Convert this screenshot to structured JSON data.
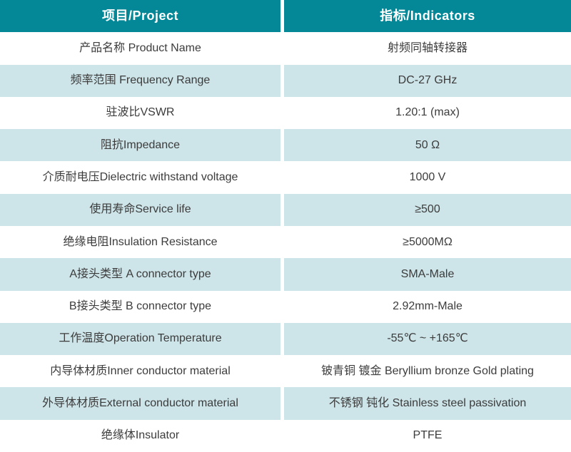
{
  "table": {
    "header": {
      "project": "项目/Project",
      "indicators": "指标/Indicators"
    },
    "rows": [
      {
        "project": "产品名称 Product Name",
        "indicator": "射频同轴转接器"
      },
      {
        "project": "频率范围 Frequency Range",
        "indicator": "DC-27 GHz"
      },
      {
        "project": "驻波比VSWR",
        "indicator": "1.20:1 (max)"
      },
      {
        "project": "阻抗Impedance",
        "indicator": "50 Ω"
      },
      {
        "project": "介质耐电压Dielectric withstand voltage",
        "indicator": "1000 V"
      },
      {
        "project": "使用寿命Service life",
        "indicator": "≥500"
      },
      {
        "project": "绝缘电阻Insulation Resistance",
        "indicator": "≥5000MΩ"
      },
      {
        "project": "A接头类型 A connector type",
        "indicator": "SMA-Male"
      },
      {
        "project": "B接头类型 B connector type",
        "indicator": "2.92mm-Male"
      },
      {
        "project": "工作温度Operation Temperature",
        "indicator": "-55℃ ~ +165℃"
      },
      {
        "project": "内导体材质Inner conductor material",
        "indicator": "铍青铜 镀金 Beryllium bronze Gold plating"
      },
      {
        "project": "外导体材质External conductor material",
        "indicator": "不锈钢 钝化 Stainless steel passivation"
      },
      {
        "project": "绝缘体Insulator",
        "indicator": "PTFE"
      }
    ],
    "colors": {
      "header_bg": "#048796",
      "header_text": "#ffffff",
      "row_bg": "#ffffff",
      "row_alt_bg": "#cde4e8",
      "text": "#3c3c3c",
      "divider": "#ffffff"
    }
  }
}
